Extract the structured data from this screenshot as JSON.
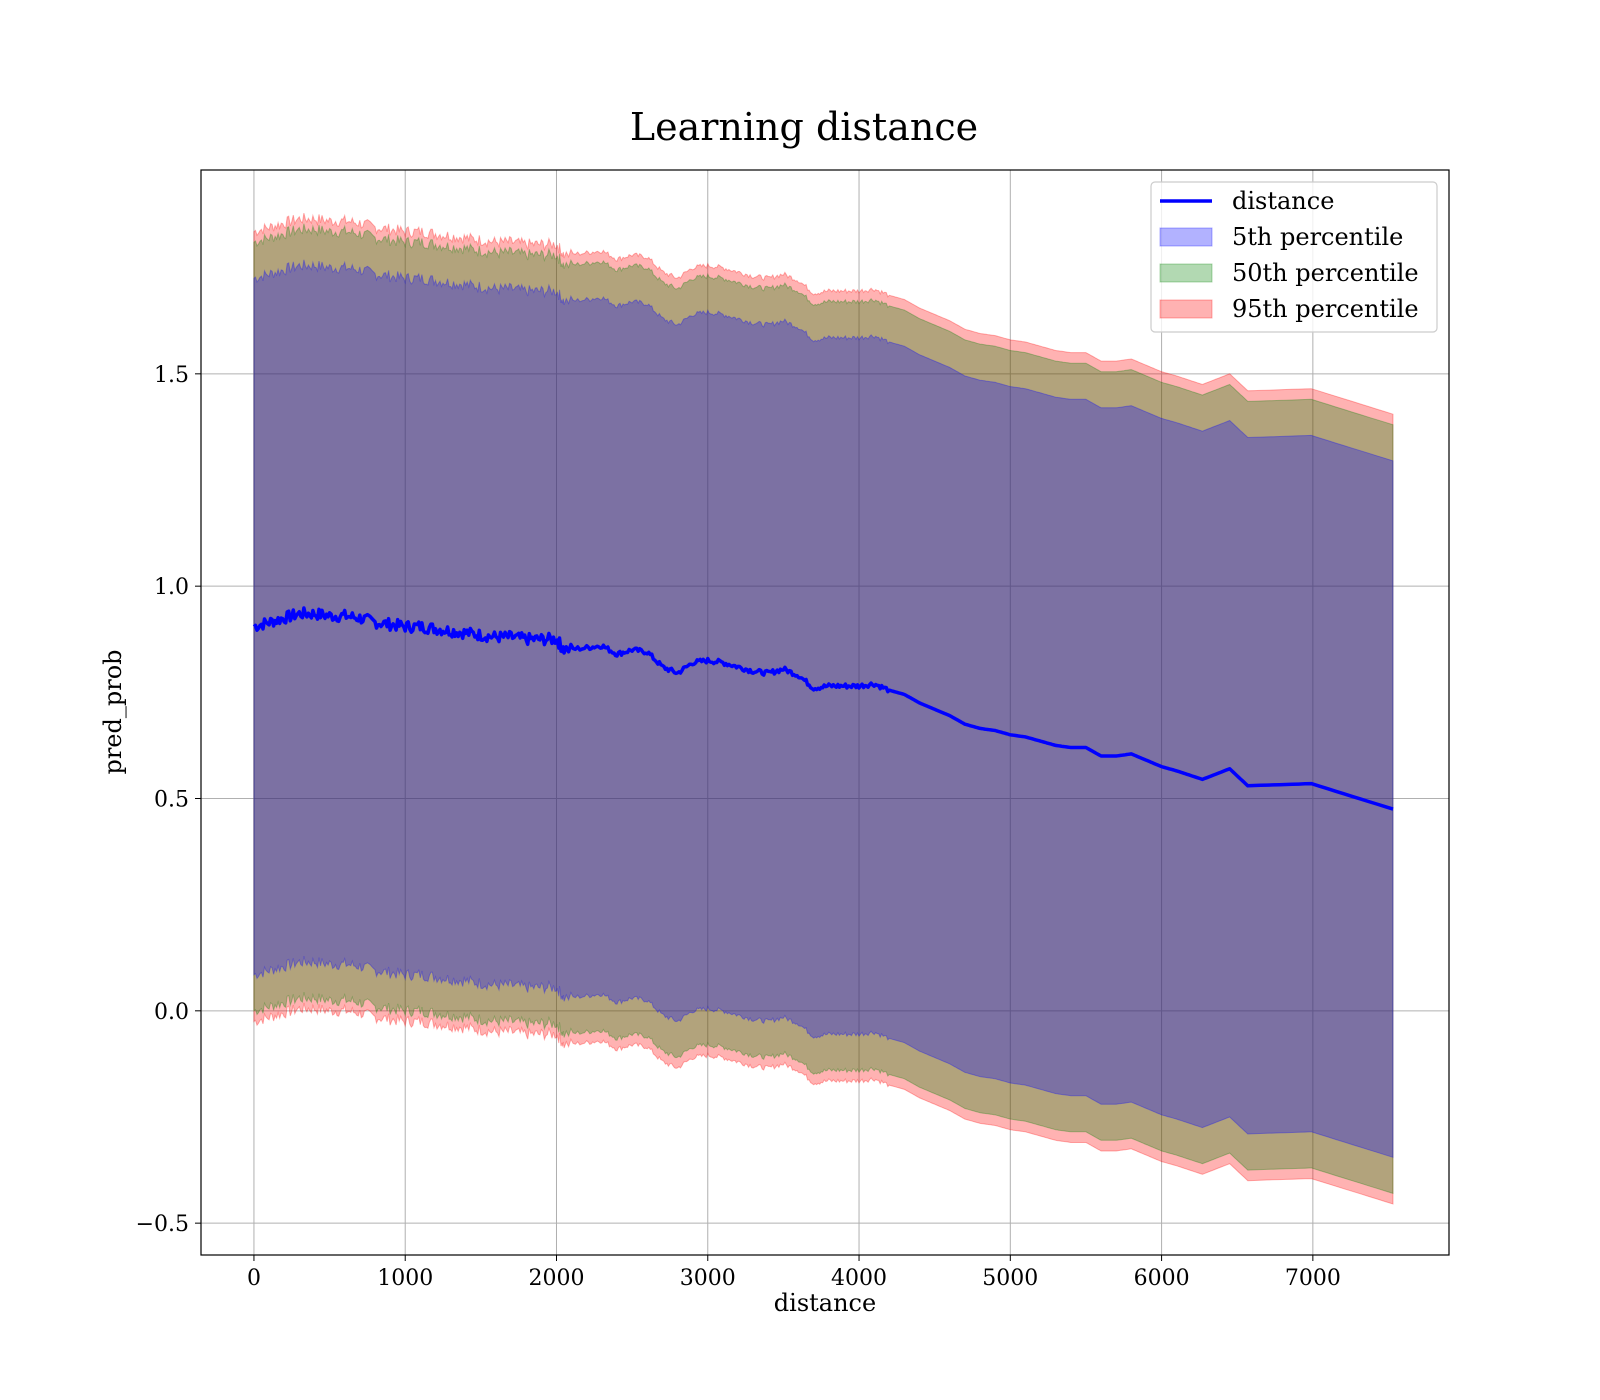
{
  "chart_data": {
    "type": "line",
    "title": "Learning distance",
    "xlabel": "distance",
    "ylabel": "pred_prob",
    "xlim": [
      -350,
      7900
    ],
    "ylim": [
      -0.575,
      1.98
    ],
    "grid": true,
    "x_ticks": [
      0,
      1000,
      2000,
      3000,
      4000,
      5000,
      6000,
      7000
    ],
    "x_tick_labels": [
      "0",
      "1000",
      "2000",
      "3000",
      "4000",
      "5000",
      "6000",
      "7000"
    ],
    "y_ticks": [
      -0.5,
      0.0,
      0.5,
      1.0,
      1.5
    ],
    "y_tick_labels": [
      "−0.5",
      "0.0",
      "0.5",
      "1.0",
      "1.5"
    ],
    "legend_position": "top-right",
    "x": [
      0,
      100,
      200,
      300,
      400,
      500,
      600,
      700,
      800,
      900,
      1000,
      1100,
      1200,
      1300,
      1400,
      1500,
      1600,
      1700,
      1800,
      1900,
      2000,
      2050,
      2200,
      2300,
      2400,
      2500,
      2600,
      2700,
      2800,
      2900,
      3000,
      3100,
      3200,
      3300,
      3400,
      3500,
      3600,
      3700,
      3800,
      3900,
      4000,
      4100,
      4200,
      4300,
      4400,
      4500,
      4600,
      4700,
      4800,
      4900,
      5000,
      5100,
      5200,
      5300,
      5400,
      5500,
      5600,
      5700,
      5800,
      5900,
      6000,
      6100,
      6270,
      6450,
      6570,
      6990,
      7530
    ],
    "series": [
      {
        "name": "distance",
        "color": "#0000ff",
        "kind": "line",
        "values": [
          0.905,
          0.915,
          0.925,
          0.935,
          0.935,
          0.93,
          0.93,
          0.925,
          0.915,
          0.91,
          0.905,
          0.905,
          0.9,
          0.895,
          0.89,
          0.885,
          0.88,
          0.88,
          0.875,
          0.875,
          0.875,
          0.85,
          0.855,
          0.86,
          0.84,
          0.85,
          0.845,
          0.81,
          0.795,
          0.82,
          0.825,
          0.82,
          0.81,
          0.8,
          0.795,
          0.805,
          0.79,
          0.76,
          0.765,
          0.765,
          0.765,
          0.77,
          0.755,
          0.745,
          0.725,
          0.71,
          0.695,
          0.675,
          0.665,
          0.66,
          0.65,
          0.645,
          0.635,
          0.625,
          0.62,
          0.62,
          0.6,
          0.6,
          0.605,
          0.59,
          0.575,
          0.565,
          0.545,
          0.57,
          0.53,
          0.535,
          0.475
        ]
      },
      {
        "name": "5th percentile",
        "color": "#0000ff",
        "kind": "band",
        "half_width": 0.82
      },
      {
        "name": "50th percentile",
        "color": "#008000",
        "kind": "band",
        "half_width": 0.905
      },
      {
        "name": "95th percentile",
        "color": "#ff0000",
        "kind": "band",
        "half_width": 0.93
      }
    ]
  }
}
